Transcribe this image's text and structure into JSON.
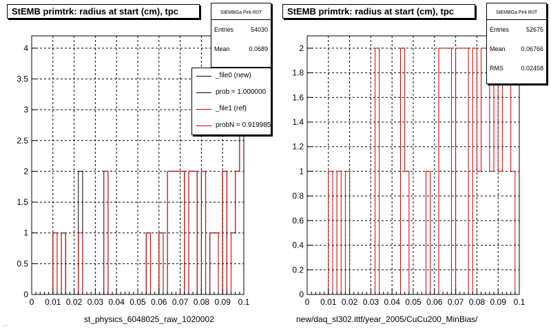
{
  "chart_data": [
    {
      "type": "histogram",
      "title": "StEMB primtrk: radius at start (cm), tpc",
      "xlabel": "st_physics_6048025_raw_1020002",
      "xlim": [
        0,
        0.1
      ],
      "ylim": [
        0,
        4.2
      ],
      "xticks": [
        0,
        0.01,
        0.02,
        0.03,
        0.04,
        0.05,
        0.06,
        0.07,
        0.08,
        0.09,
        0.1
      ],
      "xtick_labels": [
        "0",
        "0.01",
        "0.02",
        "0.03",
        "0.04",
        "0.05",
        "0.06",
        "0.07",
        "0.08",
        "0.09",
        "0.1"
      ],
      "yticks": [
        0,
        0.5,
        1,
        1.5,
        2,
        2.5,
        3,
        3.5,
        4
      ],
      "ytick_labels": [
        "0",
        "0.5",
        "1",
        "1.5",
        "2",
        "2.5",
        "3",
        "3.5",
        "4"
      ],
      "grid": true,
      "bins": 50,
      "series": [
        {
          "name": "_file0 (new)",
          "color": "#000000",
          "values": [
            0,
            0,
            0,
            0,
            0,
            1,
            0,
            1,
            0,
            0,
            0,
            2,
            0,
            0,
            0,
            0,
            0,
            2,
            0,
            0,
            0,
            0,
            0,
            0,
            0,
            0,
            0,
            1,
            0,
            0,
            1,
            0,
            2,
            2,
            2,
            2,
            0,
            2,
            2,
            0,
            2,
            0,
            1,
            1,
            0,
            2,
            0,
            1,
            2,
            4
          ]
        },
        {
          "name": "_file1 (ref)",
          "color": "#cc0000",
          "values": [
            0,
            0,
            0,
            0,
            0,
            1,
            0,
            1,
            0,
            0,
            0,
            1,
            0,
            0,
            0,
            0,
            0,
            2,
            0,
            0,
            0,
            0,
            0,
            0,
            0,
            0,
            0,
            1,
            0,
            0,
            1,
            0,
            2,
            2,
            2,
            2,
            0,
            2,
            2,
            0,
            2,
            0,
            1,
            1,
            0,
            2,
            0,
            1,
            2,
            3
          ]
        }
      ],
      "stats": {
        "title": "StEMBGa Pirk R0T",
        "entries_label": "Entries",
        "entries": "54030",
        "mean_label": "Mean",
        "mean": "0.0689"
      },
      "legend": {
        "placement": "top-right",
        "items": [
          "_file0 (new)",
          "prob = 1.000000",
          "_file1 (ref)",
          "probN = 0.919985"
        ],
        "colors": [
          "#000000",
          "#000000",
          "#cc0000",
          "#cc0000"
        ]
      }
    },
    {
      "type": "histogram",
      "title": "StEMB primtrk: radius at start (cm), tpc",
      "xlabel": "new/daq_sl302.ittf/year_2005/CuCu200_MinBias/",
      "xlim": [
        0,
        0.1
      ],
      "ylim": [
        0,
        2.1
      ],
      "xticks": [
        0,
        0.01,
        0.02,
        0.03,
        0.04,
        0.05,
        0.06,
        0.07,
        0.08,
        0.09,
        0.1
      ],
      "xtick_labels": [
        "0",
        "0.01",
        "0.02",
        "0.03",
        "0.04",
        "0.05",
        "0.06",
        "0.07",
        "0.08",
        "0.09",
        "0.1"
      ],
      "yticks": [
        0,
        0.2,
        0.4,
        0.6,
        0.8,
        1,
        1.2,
        1.4,
        1.6,
        1.8,
        2
      ],
      "ytick_labels": [
        "0",
        "0.2",
        "0.4",
        "0.6",
        "0.8",
        "1",
        "1.2",
        "1.4",
        "1.6",
        "1.8",
        "2"
      ],
      "grid": true,
      "bins": 50,
      "series": [
        {
          "name": "",
          "color": "#cc0000",
          "values": [
            0,
            0,
            0,
            0,
            0,
            1,
            0,
            1,
            0,
            1,
            0,
            0,
            0,
            0,
            0,
            0,
            2,
            0,
            0,
            0,
            0,
            0,
            2,
            1,
            0,
            0,
            0,
            0,
            1,
            0,
            0,
            2,
            2,
            2,
            0,
            2,
            2,
            2,
            0,
            2,
            1,
            2,
            2,
            1,
            2,
            1,
            2,
            2,
            1,
            0
          ]
        }
      ],
      "stats": {
        "title": "StEMBGa Pirk R0T",
        "entries_label": "Entries",
        "entries": "52675",
        "mean_label": "Mean",
        "mean": "0.06766",
        "rms_label": "RMS",
        "rms": "0.02458"
      }
    }
  ],
  "footer": {
    "left_text": "..."
  }
}
